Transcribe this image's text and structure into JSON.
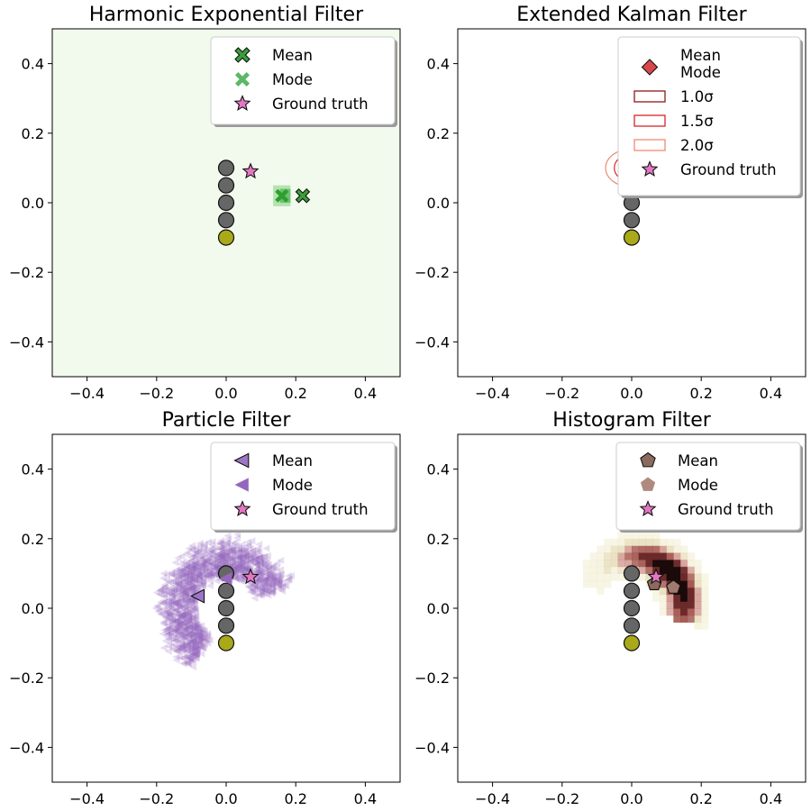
{
  "figure": {
    "panels": [
      "hef",
      "ekf",
      "pf",
      "hf"
    ]
  },
  "chart_data": [
    {
      "id": "hef",
      "type": "heatmap",
      "title": "Harmonic Exponential Filter",
      "xlim": [
        -0.5,
        0.5
      ],
      "ylim": [
        -0.5,
        0.5
      ],
      "x_ticks": [
        -0.4,
        -0.2,
        0.0,
        0.2,
        0.4
      ],
      "y_ticks": [
        -0.4,
        -0.2,
        0.0,
        0.2,
        0.4
      ],
      "x_tick_labels": [
        "−0.4",
        "−0.2",
        "0.0",
        "0.2",
        "0.4"
      ],
      "y_tick_labels": [
        "−0.4",
        "−0.2",
        "0.0",
        "0.2",
        "0.4"
      ],
      "background_color": "#f2faee",
      "density_cells": [
        {
          "x": 0.16,
          "y": 0.02,
          "w": 0.05,
          "h": 0.06,
          "color": "#a6dba0"
        },
        {
          "x": 0.17,
          "y": 0.02,
          "w": 0.03,
          "h": 0.04,
          "color": "#5bb865"
        }
      ],
      "landmarks": [
        {
          "x": 0.0,
          "y": 0.1,
          "color": "#666666"
        },
        {
          "x": 0.0,
          "y": 0.05,
          "color": "#666666"
        },
        {
          "x": 0.0,
          "y": 0.0,
          "color": "#666666"
        },
        {
          "x": 0.0,
          "y": -0.05,
          "color": "#666666"
        },
        {
          "x": 0.0,
          "y": -0.1,
          "color": "#a9a91a"
        }
      ],
      "markers": [
        {
          "kind": "mean",
          "shape": "x",
          "x": 0.22,
          "y": 0.02,
          "color": "#3a9e3a"
        },
        {
          "kind": "mode",
          "shape": "x",
          "x": 0.16,
          "y": 0.02,
          "color": "#2ca02c"
        },
        {
          "kind": "truth",
          "shape": "star",
          "x": 0.07,
          "y": 0.09,
          "color": "#e377c2"
        }
      ],
      "legend": {
        "position": "top-right",
        "entries": [
          {
            "label": "Mean",
            "shape": "x",
            "color": "#3a9e3a",
            "edge": true
          },
          {
            "label": "Mode",
            "shape": "x",
            "color": "#5bb865",
            "edge": false
          },
          {
            "label": "Ground truth",
            "shape": "star",
            "color": "#e377c2",
            "edge": true
          }
        ]
      }
    },
    {
      "id": "ekf",
      "type": "scatter",
      "title": "Extended Kalman Filter",
      "xlim": [
        -0.5,
        0.5
      ],
      "ylim": [
        -0.5,
        0.5
      ],
      "x_ticks": [
        -0.4,
        -0.2,
        0.0,
        0.2,
        0.4
      ],
      "y_ticks": [
        -0.4,
        -0.2,
        0.0,
        0.2,
        0.4
      ],
      "x_tick_labels": [
        "−0.4",
        "−0.2",
        "0.0",
        "0.2",
        "0.4"
      ],
      "y_tick_labels": [
        "−0.4",
        "−0.2",
        "0.0",
        "0.2",
        "0.4"
      ],
      "ellipses": [
        {
          "label": "1.0σ",
          "cx": 0.0,
          "cy": 0.1,
          "rx": 0.03,
          "ry": 0.03,
          "color": "#8b1a1a"
        },
        {
          "label": "1.5σ",
          "cx": 0.0,
          "cy": 0.1,
          "rx": 0.05,
          "ry": 0.04,
          "color": "#d62728"
        },
        {
          "label": "2.0σ",
          "cx": 0.0,
          "cy": 0.1,
          "rx": 0.075,
          "ry": 0.055,
          "color": "#f08a70"
        }
      ],
      "landmarks": [
        {
          "x": 0.0,
          "y": 0.1,
          "color": "#666666"
        },
        {
          "x": 0.0,
          "y": 0.05,
          "color": "#666666"
        },
        {
          "x": 0.0,
          "y": 0.0,
          "color": "#666666"
        },
        {
          "x": 0.0,
          "y": -0.05,
          "color": "#666666"
        },
        {
          "x": 0.0,
          "y": -0.1,
          "color": "#a9a91a"
        }
      ],
      "markers": [],
      "legend": {
        "position": "top-right",
        "entries": [
          {
            "label": "Mean\nMode",
            "shape": "diamond",
            "color": "#d9474b",
            "edge": true
          },
          {
            "label": "1.0σ",
            "shape": "rect",
            "color": "#8b1a1a",
            "edge": false
          },
          {
            "label": "1.5σ",
            "shape": "rect",
            "color": "#d62728",
            "edge": false
          },
          {
            "label": "2.0σ",
            "shape": "rect",
            "color": "#f08a70",
            "edge": false
          },
          {
            "label": "Ground truth",
            "shape": "star",
            "color": "#e377c2",
            "edge": true
          }
        ]
      }
    },
    {
      "id": "pf",
      "type": "scatter",
      "title": "Particle Filter",
      "xlim": [
        -0.5,
        0.5
      ],
      "ylim": [
        -0.5,
        0.5
      ],
      "x_ticks": [
        -0.4,
        -0.2,
        0.0,
        0.2,
        0.4
      ],
      "y_ticks": [
        -0.4,
        -0.2,
        0.0,
        0.2,
        0.4
      ],
      "x_tick_labels": [
        "−0.4",
        "−0.2",
        "0.0",
        "0.2",
        "0.4"
      ],
      "y_tick_labels": [
        "−0.4",
        "−0.2",
        "0.0",
        "0.2",
        "0.4"
      ],
      "particle_color": "#9467bd",
      "particle_cloud": {
        "cx": 0.0,
        "cy": 0.0,
        "r_inner": 0.09,
        "r_outer": 0.2,
        "angle_start_deg": 20,
        "angle_end_deg": 240
      },
      "landmarks": [
        {
          "x": 0.0,
          "y": 0.1,
          "color": "#666666"
        },
        {
          "x": 0.0,
          "y": 0.05,
          "color": "#666666"
        },
        {
          "x": 0.0,
          "y": 0.0,
          "color": "#666666"
        },
        {
          "x": 0.0,
          "y": -0.05,
          "color": "#666666"
        },
        {
          "x": 0.0,
          "y": -0.1,
          "color": "#a9a91a"
        }
      ],
      "markers": [
        {
          "kind": "mean",
          "shape": "tri-left",
          "x": -0.08,
          "y": 0.035,
          "color": "#9b76c6"
        },
        {
          "kind": "mode",
          "shape": "tri-left",
          "x": 0.0,
          "y": 0.085,
          "color": "#9467bd"
        },
        {
          "kind": "truth",
          "shape": "star",
          "x": 0.07,
          "y": 0.09,
          "color": "#e377c2"
        }
      ],
      "legend": {
        "position": "top-right",
        "entries": [
          {
            "label": "Mean",
            "shape": "tri-left",
            "color": "#9b76c6",
            "edge": true
          },
          {
            "label": "Mode",
            "shape": "tri-left",
            "color": "#9467bd",
            "edge": false
          },
          {
            "label": "Ground truth",
            "shape": "star",
            "color": "#e377c2",
            "edge": true
          }
        ]
      }
    },
    {
      "id": "hf",
      "type": "heatmap",
      "title": "Histogram Filter",
      "xlim": [
        -0.5,
        0.5
      ],
      "ylim": [
        -0.5,
        0.5
      ],
      "x_ticks": [
        -0.4,
        -0.2,
        0.0,
        0.2,
        0.4
      ],
      "y_ticks": [
        -0.4,
        -0.2,
        0.0,
        0.2,
        0.4
      ],
      "x_tick_labels": [
        "−0.4",
        "−0.2",
        "0.0",
        "0.2",
        "0.4"
      ],
      "y_tick_labels": [
        "−0.4",
        "−0.2",
        "0.0",
        "0.2",
        "0.4"
      ],
      "histogram": {
        "cx": 0.0,
        "cy": 0.0,
        "r": 0.14,
        "cell": 0.02,
        "angle_start_deg": -20,
        "angle_end_deg": 160,
        "peak_angle_deg": 35
      },
      "landmarks": [
        {
          "x": 0.0,
          "y": 0.1,
          "color": "#666666"
        },
        {
          "x": 0.0,
          "y": 0.05,
          "color": "#666666"
        },
        {
          "x": 0.0,
          "y": 0.0,
          "color": "#666666"
        },
        {
          "x": 0.0,
          "y": -0.05,
          "color": "#666666"
        },
        {
          "x": 0.0,
          "y": -0.1,
          "color": "#a9a91a"
        }
      ],
      "markers": [
        {
          "kind": "mean",
          "shape": "pentagon",
          "x": 0.065,
          "y": 0.07,
          "color": "#8c6a5d"
        },
        {
          "kind": "mode",
          "shape": "pentagon",
          "x": 0.12,
          "y": 0.06,
          "color": "#a07a6e"
        },
        {
          "kind": "truth",
          "shape": "star",
          "x": 0.07,
          "y": 0.09,
          "color": "#e377c2"
        }
      ],
      "legend": {
        "position": "top-right",
        "entries": [
          {
            "label": "Mean",
            "shape": "pentagon",
            "color": "#8c6a5d",
            "edge": true
          },
          {
            "label": "Mode",
            "shape": "pentagon",
            "color": "#b08a7e",
            "edge": false
          },
          {
            "label": "Ground truth",
            "shape": "star",
            "color": "#e377c2",
            "edge": true
          }
        ]
      }
    }
  ]
}
